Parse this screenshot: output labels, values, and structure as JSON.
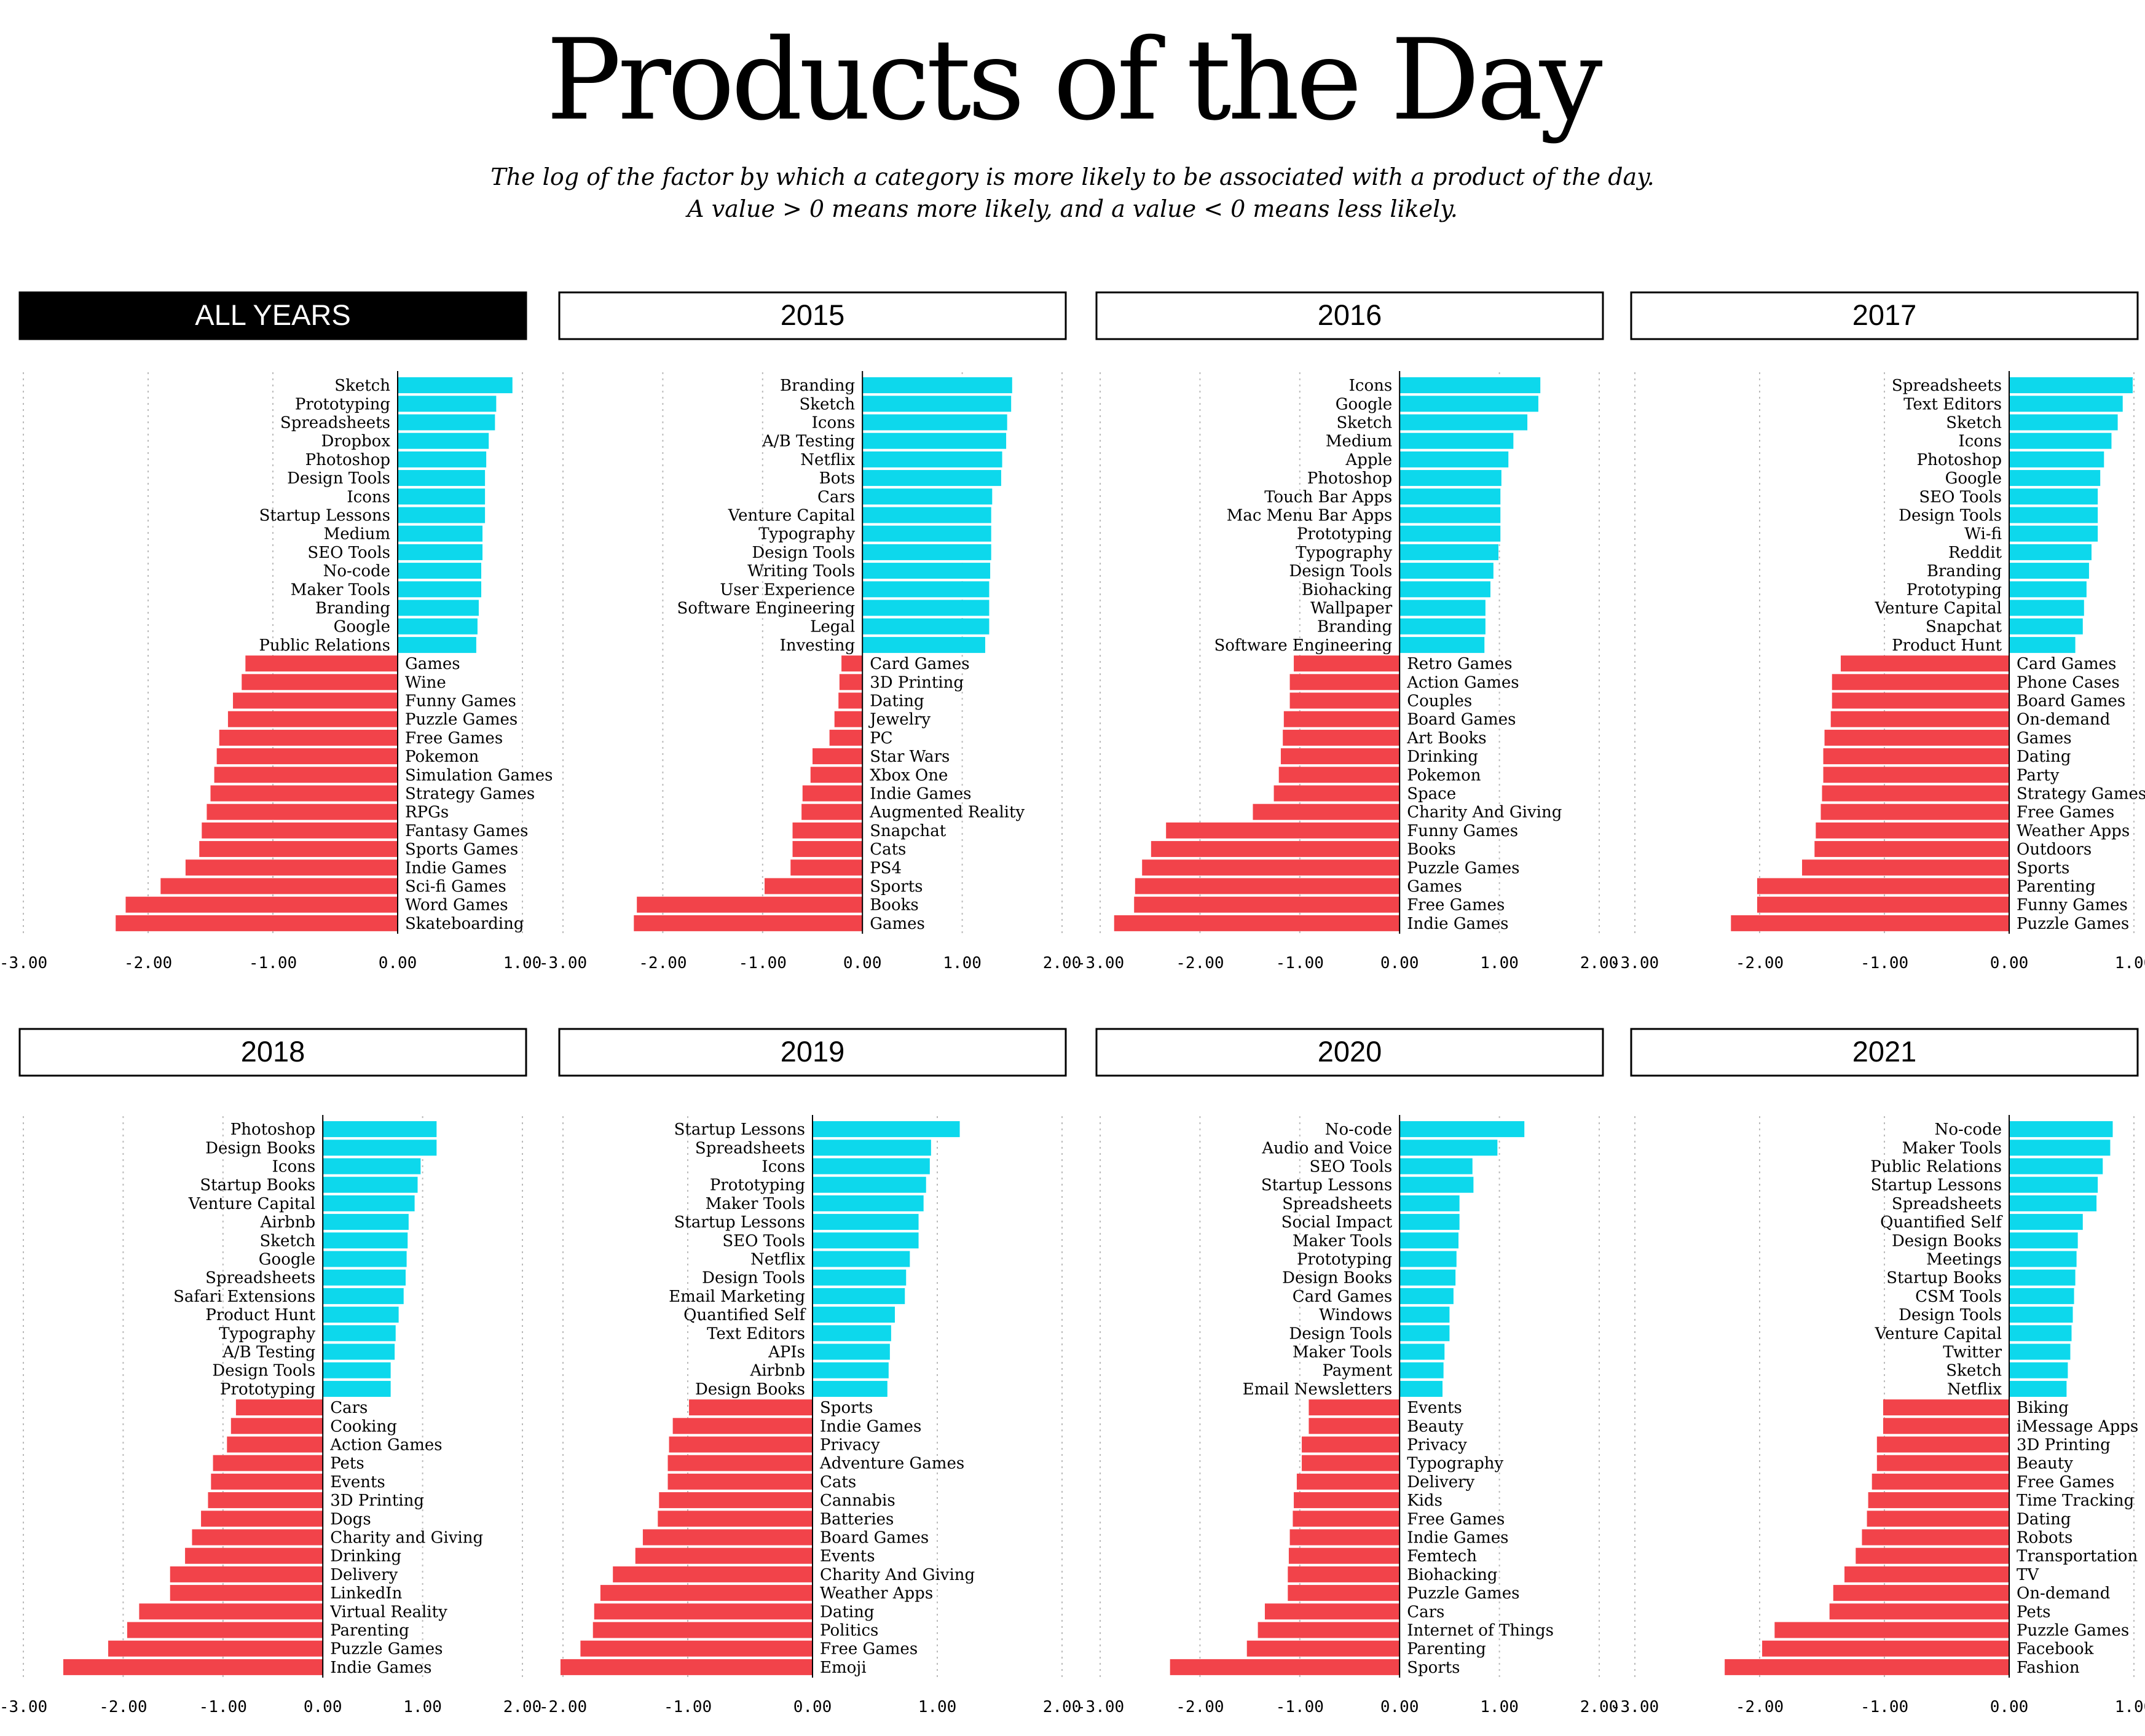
{
  "title": "Products of the Day",
  "subtitle_lines": [
    "The log of the factor by which a category is more likely to be associated with a product of the day.",
    "A value > 0 means more likely, and a value < 0 means less likely."
  ],
  "colors": {
    "positive": "#0dd8ec",
    "negative": "#f2434a",
    "header_active_bg": "#000000",
    "header_active_text": "#ffffff"
  },
  "chart_data": [
    {
      "type": "bar",
      "orientation": "horizontal",
      "title": "ALL YEARS",
      "active": true,
      "xlim": [
        -3,
        1
      ],
      "xticks": [
        -3,
        -2,
        -1,
        0,
        1
      ],
      "categories": [
        "Sketch",
        "Prototyping",
        "Spreadsheets",
        "Dropbox",
        "Photoshop",
        "Design Tools",
        "Icons",
        "Startup Lessons",
        "Medium",
        "SEO Tools",
        "No-code",
        "Maker Tools",
        "Branding",
        "Google",
        "Public Relations",
        "Games",
        "Wine",
        "Funny Games",
        "Puzzle Games",
        "Free Games",
        "Pokemon",
        "Simulation Games",
        "Strategy Games",
        "RPGs",
        "Fantasy Games",
        "Sports Games",
        "Indie Games",
        "Sci-fi Games",
        "Word Games",
        "Skateboarding"
      ],
      "values": [
        0.92,
        0.79,
        0.78,
        0.73,
        0.71,
        0.7,
        0.7,
        0.7,
        0.68,
        0.68,
        0.67,
        0.67,
        0.65,
        0.64,
        0.63,
        -1.22,
        -1.25,
        -1.32,
        -1.36,
        -1.43,
        -1.45,
        -1.47,
        -1.5,
        -1.53,
        -1.57,
        -1.59,
        -1.7,
        -1.9,
        -2.18,
        -2.26
      ]
    },
    {
      "type": "bar",
      "orientation": "horizontal",
      "title": "2015",
      "active": false,
      "xlim": [
        -3,
        2
      ],
      "xticks": [
        -3,
        -2,
        -1,
        0,
        1,
        2
      ],
      "categories": [
        "Branding",
        "Sketch",
        "Icons",
        "A/B Testing",
        "Netflix",
        "Bots",
        "Cars",
        "Venture Capital",
        "Typography",
        "Design Tools",
        "Writing Tools",
        "User Experience",
        "Software Engineering",
        "Legal",
        "Investing",
        "Card Games",
        "3D Printing",
        "Dating",
        "Jewelry",
        "PC",
        "Star Wars",
        "Xbox One",
        "Indie Games",
        "Augmented  Reality",
        "Snapchat",
        "Cats",
        "PS4",
        "Sports",
        "Books",
        "Games"
      ],
      "values": [
        1.5,
        1.49,
        1.45,
        1.44,
        1.4,
        1.39,
        1.3,
        1.29,
        1.29,
        1.29,
        1.28,
        1.27,
        1.27,
        1.27,
        1.23,
        -0.21,
        -0.23,
        -0.24,
        -0.28,
        -0.33,
        -0.5,
        -0.52,
        -0.6,
        -0.61,
        -0.7,
        -0.7,
        -0.72,
        -0.98,
        -2.26,
        -2.29
      ]
    },
    {
      "type": "bar",
      "orientation": "horizontal",
      "title": "2016",
      "active": false,
      "xlim": [
        -3,
        2
      ],
      "xticks": [
        -3,
        -2,
        -1,
        0,
        1,
        2
      ],
      "categories": [
        "Icons",
        "Google",
        "Sketch",
        "Medium",
        "Apple",
        "Photoshop",
        "Touch Bar Apps",
        "Mac Menu Bar Apps",
        "Prototyping",
        "Typography",
        "Design Tools",
        "Biohacking",
        "Wallpaper",
        "Branding",
        "Software Engineering",
        "Retro Games",
        "Action Games",
        "Couples",
        "Board Games",
        "Art Books",
        "Drinking",
        "Pokemon",
        "Space",
        "Charity And Giving",
        "Funny Games",
        "Books",
        "Puzzle Games",
        "Games",
        "Free Games",
        "Indie Games"
      ],
      "values": [
        1.41,
        1.39,
        1.28,
        1.14,
        1.09,
        1.02,
        1.01,
        1.01,
        1.01,
        0.99,
        0.94,
        0.91,
        0.86,
        0.86,
        0.85,
        -1.06,
        -1.1,
        -1.1,
        -1.16,
        -1.17,
        -1.19,
        -1.21,
        -1.26,
        -1.47,
        -2.34,
        -2.49,
        -2.58,
        -2.65,
        -2.66,
        -2.86
      ]
    },
    {
      "type": "bar",
      "orientation": "horizontal",
      "title": "2017",
      "active": false,
      "xlim": [
        -3,
        1
      ],
      "xticks": [
        -3,
        -2,
        -1,
        0,
        1
      ],
      "categories": [
        "Spreadsheets",
        "Text Editors",
        "Sketch",
        "Icons",
        "Photoshop",
        "Google",
        "SEO Tools",
        "Design Tools",
        "Wi-fi",
        "Reddit",
        "Branding",
        "Prototyping",
        "Venture Capital",
        "Snapchat",
        "Product Hunt",
        "Card Games",
        "Phone Cases",
        "Board Games",
        "On-demand",
        "Games",
        "Dating",
        "Party",
        "Strategy Games",
        "Free Games",
        "Weather Apps",
        "Outdoors",
        "Sports",
        "Parenting",
        "Funny Games",
        "Puzzle Games"
      ],
      "values": [
        0.99,
        0.91,
        0.87,
        0.82,
        0.76,
        0.73,
        0.71,
        0.71,
        0.71,
        0.66,
        0.64,
        0.62,
        0.6,
        0.59,
        0.53,
        -1.35,
        -1.42,
        -1.42,
        -1.43,
        -1.48,
        -1.49,
        -1.49,
        -1.5,
        -1.51,
        -1.55,
        -1.56,
        -1.66,
        -2.02,
        -2.02,
        -2.23
      ]
    },
    {
      "type": "bar",
      "orientation": "horizontal",
      "title": "2018",
      "active": false,
      "xlim": [
        -3,
        2
      ],
      "xticks": [
        -3,
        -2,
        -1,
        0,
        1,
        2
      ],
      "categories": [
        "Photoshop",
        "Design Books",
        "Icons",
        "Startup Books",
        "Venture Capital",
        "Airbnb",
        "Sketch",
        "Google",
        "Spreadsheets",
        "Safari Extensions",
        "Product Hunt",
        "Typography",
        "A/B Testing",
        "Design Tools",
        "Prototyping",
        "Cars",
        "Cooking",
        "Action Games",
        "Pets",
        "Events",
        "3D Printing",
        "Dogs",
        "Charity and Giving",
        "Drinking",
        "Delivery",
        "LinkedIn",
        "Virtual Reality",
        "Parenting",
        "Puzzle Games",
        "Indie Games"
      ],
      "values": [
        1.14,
        1.14,
        0.98,
        0.95,
        0.92,
        0.86,
        0.85,
        0.84,
        0.83,
        0.81,
        0.76,
        0.73,
        0.72,
        0.68,
        0.68,
        -0.87,
        -0.92,
        -0.96,
        -1.1,
        -1.12,
        -1.15,
        -1.22,
        -1.31,
        -1.38,
        -1.53,
        -1.53,
        -1.84,
        -1.96,
        -2.15,
        -2.6
      ]
    },
    {
      "type": "bar",
      "orientation": "horizontal",
      "title": "2019",
      "active": false,
      "xlim": [
        -2,
        2
      ],
      "xticks": [
        -2,
        -1,
        0,
        1,
        2
      ],
      "categories": [
        "Startup Lessons",
        "Spreadsheets",
        "Icons",
        "Prototyping",
        "Maker Tools",
        "Startup Lessons",
        "SEO Tools",
        "Netflix",
        "Design Tools",
        "Email Marketing",
        "Quantified Self",
        "Text Editors",
        "APIs",
        "Airbnb",
        "Design Books",
        "Sports",
        "Indie Games",
        "Privacy",
        "Adventure Games",
        "Cats",
        "Cannabis",
        "Batteries",
        "Board Games",
        "Events",
        "Charity And Giving",
        "Weather Apps",
        "Dating",
        "Politics",
        "Free Games",
        "Emoji"
      ],
      "values": [
        1.18,
        0.95,
        0.94,
        0.91,
        0.89,
        0.85,
        0.85,
        0.78,
        0.75,
        0.74,
        0.66,
        0.63,
        0.62,
        0.61,
        0.6,
        -0.99,
        -1.12,
        -1.15,
        -1.16,
        -1.16,
        -1.23,
        -1.24,
        -1.36,
        -1.42,
        -1.6,
        -1.7,
        -1.75,
        -1.76,
        -1.86,
        -2.02
      ]
    },
    {
      "type": "bar",
      "orientation": "horizontal",
      "title": "2020",
      "active": false,
      "xlim": [
        -3,
        2
      ],
      "xticks": [
        -3,
        -2,
        -1,
        0,
        1,
        2
      ],
      "categories": [
        "No-code",
        "Audio and Voice",
        "SEO Tools",
        "Startup Lessons",
        "Spreadsheets",
        "Social Impact",
        "Maker Tools",
        "Prototyping",
        "Design Books",
        "Card Games",
        "Windows",
        "Design Tools",
        "Maker Tools",
        "Payment",
        "Email Newsletters",
        "Events",
        "Beauty",
        "Privacy",
        "Typography",
        "Delivery",
        "Kids",
        "Free Games",
        "Indie Games",
        "Femtech",
        "Biohacking",
        "Puzzle Games",
        "Cars",
        "Internet of Things",
        "Parenting",
        "Sports"
      ],
      "values": [
        1.25,
        0.98,
        0.73,
        0.74,
        0.6,
        0.6,
        0.59,
        0.57,
        0.56,
        0.54,
        0.5,
        0.5,
        0.45,
        0.44,
        0.43,
        -0.91,
        -0.91,
        -0.98,
        -0.98,
        -1.03,
        -1.06,
        -1.07,
        -1.1,
        -1.11,
        -1.12,
        -1.12,
        -1.35,
        -1.42,
        -1.53,
        -2.3
      ]
    },
    {
      "type": "bar",
      "orientation": "horizontal",
      "title": "2021",
      "active": false,
      "xlim": [
        -3,
        1
      ],
      "xticks": [
        -3,
        -2,
        -1,
        0,
        1
      ],
      "categories": [
        "No-code",
        "Maker Tools",
        "Public Relations",
        "Startup Lessons",
        "Spreadsheets",
        "Quantified Self",
        "Design Books",
        "Meetings",
        "Startup Books",
        "CSM Tools",
        "Design Tools",
        "Venture Capital",
        "Twitter",
        "Sketch",
        "Netflix",
        "Biking",
        "iMessage Apps",
        "3D Printing",
        "Beauty",
        "Free Games",
        "Time Tracking",
        "Dating",
        "Robots",
        "Transportation",
        "TV",
        "On-demand",
        "Pets",
        "Puzzle Games",
        "Facebook",
        "Fashion"
      ],
      "values": [
        0.83,
        0.81,
        0.75,
        0.71,
        0.7,
        0.59,
        0.55,
        0.54,
        0.53,
        0.52,
        0.51,
        0.5,
        0.49,
        0.47,
        0.46,
        -1.01,
        -1.01,
        -1.06,
        -1.06,
        -1.1,
        -1.13,
        -1.14,
        -1.18,
        -1.23,
        -1.32,
        -1.41,
        -1.44,
        -1.88,
        -1.98,
        -2.28
      ]
    }
  ]
}
